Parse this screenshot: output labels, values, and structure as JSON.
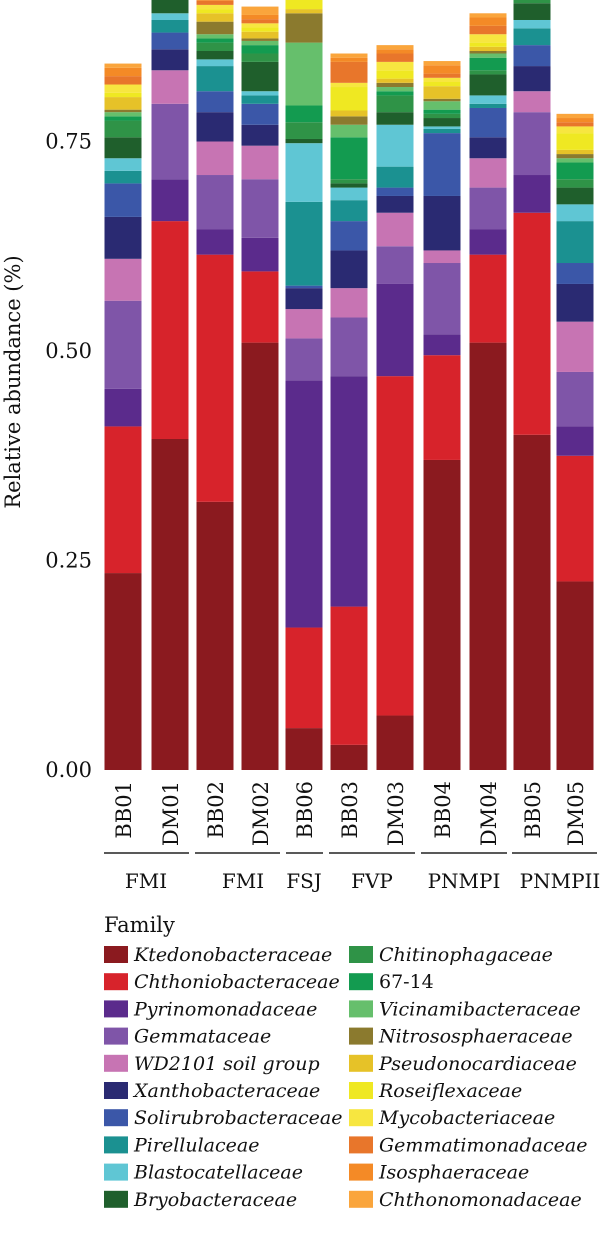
{
  "chart_data": {
    "type": "bar",
    "stacked": true,
    "xlabel": "",
    "ylabel": "Relative abundance (%)",
    "ylim": [
      0,
      0.92
    ],
    "yticks": [
      "0.00",
      "0.25",
      "0.50",
      "0.75"
    ],
    "ytick_values": [
      0,
      0.25,
      0.5,
      0.75
    ],
    "categories": [
      "BB01",
      "DM01",
      "BB02",
      "DM02",
      "BB06",
      "BB03",
      "DM03",
      "BB04",
      "DM04",
      "BB05",
      "DM05"
    ],
    "groups": [
      {
        "label": "FMI",
        "samples": [
          "BB01",
          "DM01"
        ]
      },
      {
        "label": "FMI",
        "samples": [
          "BB02",
          "DM02"
        ]
      },
      {
        "label": "FSJ",
        "samples": [
          "BB06"
        ]
      },
      {
        "label": "FVP",
        "samples": [
          "BB03",
          "DM03"
        ]
      },
      {
        "label": "PNMPI",
        "samples": [
          "BB04",
          "DM04"
        ]
      },
      {
        "label": "PNMPII",
        "samples": [
          "BB05",
          "DM05"
        ]
      }
    ],
    "legend_title": "Family",
    "series": [
      {
        "name": "Ktedonobacteraceae",
        "color": "#8B1A1F",
        "values": [
          0.235,
          0.395,
          0.32,
          0.51,
          0.05,
          0.03,
          0.065,
          0.37,
          0.51,
          0.4,
          0.225
        ]
      },
      {
        "name": "Chthoniobacteraceae",
        "color": "#D7232B",
        "values": [
          0.175,
          0.26,
          0.295,
          0.085,
          0.12,
          0.165,
          0.405,
          0.125,
          0.105,
          0.265,
          0.15
        ]
      },
      {
        "name": "Pyrinomonadaceae",
        "color": "#5B2B8C",
        "values": [
          0.045,
          0.05,
          0.03,
          0.04,
          0.295,
          0.275,
          0.11,
          0.025,
          0.03,
          0.045,
          0.035
        ]
      },
      {
        "name": "Gemmataceae",
        "color": "#7F55A8",
        "values": [
          0.105,
          0.09,
          0.065,
          0.07,
          0.05,
          0.07,
          0.045,
          0.085,
          0.05,
          0.075,
          0.065
        ]
      },
      {
        "name": "WD2101 soil group",
        "color": "#C774B3",
        "values": [
          0.05,
          0.04,
          0.04,
          0.04,
          0.035,
          0.035,
          0.04,
          0.015,
          0.035,
          0.025,
          0.06
        ]
      },
      {
        "name": "Xanthobacteraceae",
        "color": "#2A2A72",
        "values": [
          0.05,
          0.025,
          0.035,
          0.025,
          0.025,
          0.045,
          0.02,
          0.065,
          0.025,
          0.03,
          0.045
        ]
      },
      {
        "name": "Solirubrobacteraceae",
        "color": "#3B57A8",
        "values": [
          0.04,
          0.02,
          0.025,
          0.025,
          0.003,
          0.035,
          0.01,
          0.075,
          0.035,
          0.025,
          0.025
        ]
      },
      {
        "name": "Pirellulaceae",
        "color": "#1B9191",
        "values": [
          0.015,
          0.015,
          0.03,
          0.01,
          0.1,
          0.025,
          0.025,
          0.005,
          0.005,
          0.02,
          0.05
        ]
      },
      {
        "name": "Blastocatellaceae",
        "color": "#5FC6D4",
        "values": [
          0.015,
          0.008,
          0.008,
          0.005,
          0.07,
          0.015,
          0.05,
          0.003,
          0.01,
          0.01,
          0.02
        ]
      },
      {
        "name": "Bryobacteraceae",
        "color": "#1F5F2C",
        "values": [
          0.025,
          0.02,
          0.01,
          0.035,
          0.005,
          0.005,
          0.015,
          0.01,
          0.025,
          0.02,
          0.02
        ]
      },
      {
        "name": "Chitinophagaceae",
        "color": "#2F9347",
        "values": [
          0.02,
          0.01,
          0.01,
          0.01,
          0.02,
          0.005,
          0.02,
          0.005,
          0.005,
          0.01,
          0.01
        ]
      },
      {
        "name": "67-14",
        "color": "#139B50",
        "values": [
          0.005,
          0.005,
          0.005,
          0.01,
          0.02,
          0.05,
          0.005,
          0.005,
          0.015,
          0.01,
          0.02
        ]
      },
      {
        "name": "Vicinamibacteraceae",
        "color": "#66BF6C",
        "values": [
          0.005,
          0.005,
          0.005,
          0.005,
          0.075,
          0.015,
          0.005,
          0.01,
          0.005,
          0.005,
          0.005
        ]
      },
      {
        "name": "Nitrososphaeraceae",
        "color": "#8B7A2E",
        "values": [
          0.003,
          0.003,
          0.015,
          0.003,
          0.035,
          0.01,
          0.005,
          0.003,
          0.003,
          0.01,
          0.005
        ]
      },
      {
        "name": "Pseudonocardiaceae",
        "color": "#E6C228",
        "values": [
          0.015,
          0.01,
          0.01,
          0.008,
          0.005,
          0.007,
          0.005,
          0.015,
          0.005,
          0.003,
          0.005
        ]
      },
      {
        "name": "Roseiflexaceae",
        "color": "#EFE822",
        "values": [
          0.005,
          0.005,
          0.005,
          0.005,
          0.015,
          0.028,
          0.01,
          0.005,
          0.005,
          0.005,
          0.02
        ]
      },
      {
        "name": "Mycobacteriaceae",
        "color": "#F7E640",
        "values": [
          0.01,
          0.01,
          0.005,
          0.005,
          0.005,
          0.005,
          0.01,
          0.005,
          0.01,
          0.005,
          0.008
        ]
      },
      {
        "name": "Gemmatimonadaceae",
        "color": "#E8762B",
        "values": [
          0.01,
          0.005,
          0.005,
          0.005,
          0.005,
          0.025,
          0.01,
          0.005,
          0.01,
          0.005,
          0.005
        ]
      },
      {
        "name": "Isosphaeraceae",
        "color": "#F48A26",
        "values": [
          0.01,
          0.01,
          0.005,
          0.005,
          0.003,
          0.005,
          0.005,
          0.01,
          0.01,
          0.005,
          0.005
        ]
      },
      {
        "name": "Chthonomonadaceae",
        "color": "#FAA53C",
        "values": [
          0.005,
          0.005,
          0.005,
          0.01,
          0.005,
          0.005,
          0.005,
          0.005,
          0.005,
          0.005,
          0.005
        ]
      }
    ]
  }
}
